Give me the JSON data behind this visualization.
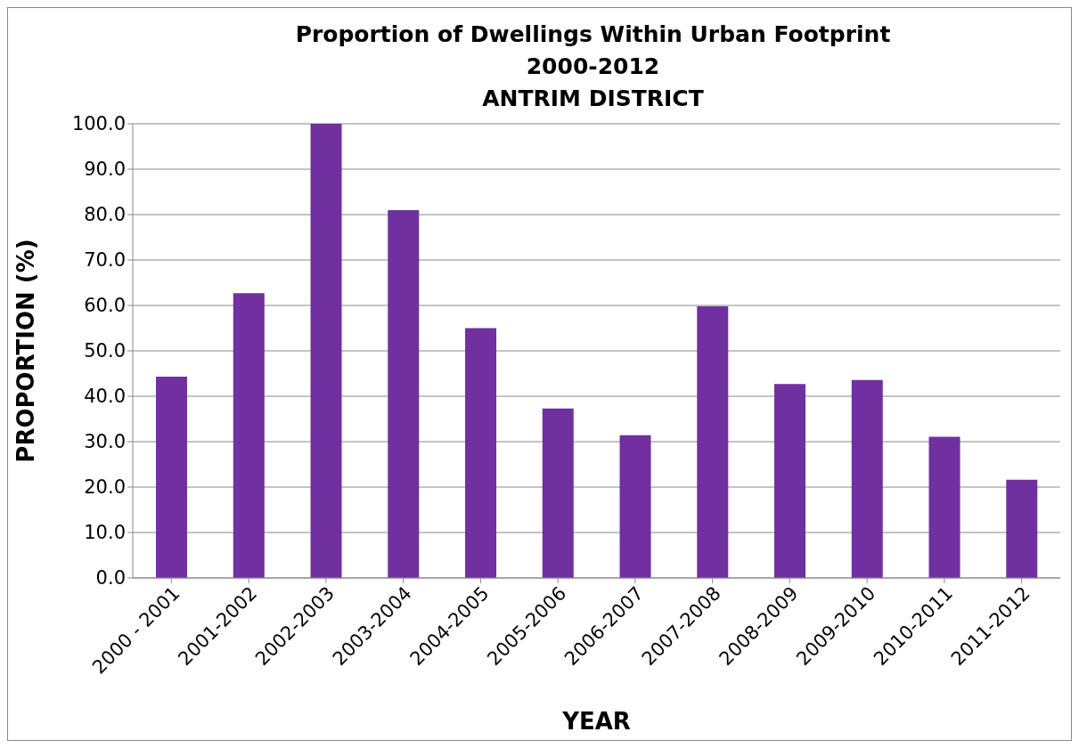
{
  "chart_data": {
    "type": "bar",
    "title": "Proportion of Dwellings Within Urban Footprint\n2000-2012\nANTRIM DISTRICT",
    "xlabel": "YEAR",
    "ylabel": "PROPORTION (%)",
    "categories": [
      "2000 - 2001",
      "2001-2002",
      "2002-2003",
      "2003-2004",
      "2004-2005",
      "2005-2006",
      "2006-2007",
      "2007-2008",
      "2008-2009",
      "2009-2010",
      "2010-2011",
      "2011-2012"
    ],
    "values": [
      44.3,
      62.7,
      100,
      81,
      55,
      37.3,
      31.4,
      59.8,
      42.7,
      43.6,
      31.1,
      21.6
    ],
    "color": "#7030a0",
    "ylim": [
      0,
      100
    ],
    "yticks": [
      {
        "value": 0,
        "label": "0.0"
      },
      {
        "value": 10,
        "label": "10.0"
      },
      {
        "value": 20,
        "label": "20.0"
      },
      {
        "value": 30,
        "label": "30.0"
      },
      {
        "value": 40,
        "label": "40.0"
      },
      {
        "value": 50,
        "label": "50.0"
      },
      {
        "value": 60,
        "label": "60.0"
      },
      {
        "value": 70,
        "label": "70.0"
      },
      {
        "value": 80,
        "label": "80.0"
      },
      {
        "value": 90,
        "label": "90.0"
      },
      {
        "value": 100,
        "label": "100.0"
      }
    ],
    "grid": "y"
  }
}
